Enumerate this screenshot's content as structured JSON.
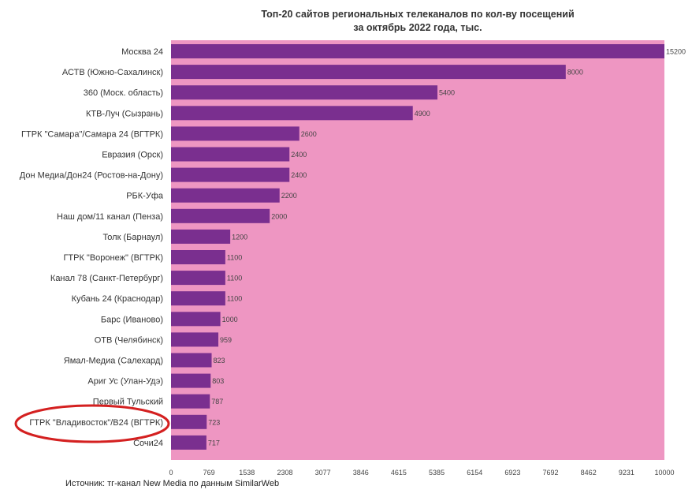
{
  "chart_data": {
    "type": "bar",
    "orientation": "horizontal",
    "title": "Топ-20 сайтов региональных телеканалов по кол-ву посещений",
    "subtitle": "за октябрь 2022 года, тыс.",
    "categories": [
      "Москва 24",
      "АСТВ (Южно-Сахалинск)",
      "360 (Моск. область)",
      "КТВ-Луч (Сызрань)",
      "ГТРК \"Самара\"/Самара 24 (ВГТРК)",
      "Евразия (Орск)",
      "Дон Медиа/Дон24 (Ростов-на-Дону)",
      "РБК-Уфа",
      "Наш дом/11 канал (Пенза)",
      "Толк (Барнаул)",
      "ГТРК \"Воронеж\" (ВГТРК)",
      "Канал 78 (Санкт-Петербург)",
      "Кубань 24 (Краснодар)",
      "Барс (Иваново)",
      "ОТВ (Челябинск)",
      "Ямал-Медиа (Салехард)",
      "Ариг Ус (Улан-Удэ)",
      "Первый Тульский",
      "ГТРК \"Владивосток\"/В24 (ВГТРК)",
      "Сочи24"
    ],
    "values": [
      15200,
      8000,
      5400,
      4900,
      2600,
      2400,
      2400,
      2200,
      2000,
      1200,
      1100,
      1100,
      1100,
      1000,
      959,
      823,
      803,
      787,
      723,
      717
    ],
    "value_labels": [
      "15200",
      "8000",
      "5400",
      "4900",
      "2600",
      "2400",
      "2400",
      "2200",
      "2000",
      "1200",
      "1100",
      "1100",
      "1100",
      "1000",
      "959",
      "823",
      "803",
      "787",
      "723",
      "717"
    ],
    "xlim": [
      0,
      10000
    ],
    "x_ticks": [
      "0",
      "769",
      "1538",
      "2308",
      "3077",
      "3846",
      "4615",
      "5385",
      "6154",
      "6923",
      "7692",
      "8462",
      "9231",
      "10000"
    ],
    "xlabel": "",
    "ylabel": "",
    "highlighted_category": "ГТРК \"Владивосток\"/В24 (ВГТРК)",
    "source": "Источник: тг-канал New Media по данным SimilarWeb",
    "colors": {
      "background": "#EE96C2",
      "bar": "#7A2F8F",
      "highlight": "#D42020",
      "text": "#333333"
    }
  }
}
